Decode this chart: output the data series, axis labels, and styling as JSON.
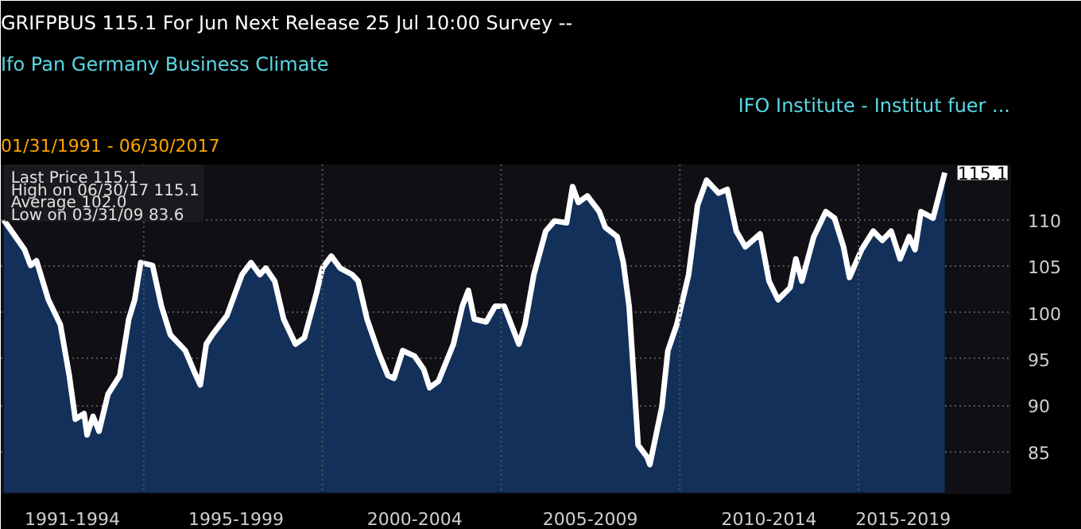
{
  "chart_data": {
    "type": "area",
    "title": "Ifo Pan Germany Business Climate",
    "subtitle": "GRIFPBUS 115.1   For Jun   Next Release 25 Jul 10:00   Survey --",
    "annotations": [
      "IFO Institute - Institut fuer ...",
      "01/31/1991 - 06/30/2017",
      "Last Price  115.1",
      "High on 06/30/17  115.1",
      "Average  102.0",
      "Low on 03/31/09  83.6",
      {
        "text": "115.1",
        "x": "2017-06",
        "y": 115.1
      }
    ],
    "x": [
      "1991-02",
      "1991-09",
      "1991-11",
      "1992-01",
      "1992-05",
      "1992-09",
      "1992-12",
      "1993-02",
      "1993-05",
      "1993-06",
      "1993-08",
      "1993-10",
      "1994-01",
      "1994-05",
      "1994-08",
      "1994-10",
      "1994-12",
      "1995-04",
      "1995-07",
      "1995-10",
      "1996-03",
      "1996-06",
      "1996-08",
      "1996-10",
      "1996-12",
      "1997-05",
      "1997-10",
      "1998-01",
      "1998-04",
      "1998-06",
      "1998-09",
      "1998-12",
      "1999-04",
      "1999-07",
      "1999-11",
      "2000-01",
      "2000-04",
      "2000-07",
      "2000-11",
      "2001-01",
      "2001-04",
      "2001-08",
      "2001-11",
      "2002-01",
      "2002-04",
      "2002-08",
      "2002-11",
      "2003-01",
      "2003-04",
      "2003-09",
      "2003-12",
      "2004-02",
      "2004-04",
      "2004-08",
      "2004-11",
      "2005-02",
      "2005-07",
      "2005-09",
      "2005-12",
      "2006-04",
      "2006-07",
      "2006-11",
      "2007-01",
      "2007-03",
      "2007-06",
      "2007-10",
      "2007-12",
      "2008-04",
      "2008-06",
      "2008-08",
      "2008-11",
      "2009-02",
      "2009-03",
      "2009-07",
      "2009-09",
      "2009-12",
      "2010-04",
      "2010-07",
      "2010-10",
      "2011-02",
      "2011-05",
      "2011-08",
      "2011-11",
      "2012-04",
      "2012-07",
      "2012-10",
      "2013-02",
      "2013-04",
      "2013-06",
      "2013-10",
      "2014-02",
      "2014-05",
      "2014-08",
      "2014-10",
      "2015-02",
      "2015-06",
      "2015-09",
      "2015-12",
      "2016-03",
      "2016-06",
      "2016-08",
      "2016-10",
      "2017-02",
      "2017-04",
      "2017-06"
    ],
    "series": [
      {
        "color": "#ffffff",
        "values": [
          110,
          106.8,
          105.1,
          105.6,
          101.4,
          98.7,
          93.2,
          88.5,
          89.1,
          86.8,
          88.8,
          87.2,
          91.2,
          93.2,
          99.3,
          101.4,
          105.4,
          105.1,
          100.7,
          97.6,
          95.9,
          93.6,
          92.2,
          96.6,
          97.6,
          99.7,
          104.1,
          105.4,
          104.1,
          104.8,
          103.4,
          99.3,
          96.6,
          97.3,
          102.1,
          104.8,
          106.1,
          104.8,
          104.1,
          103.4,
          99.3,
          95.6,
          93.2,
          92.9,
          95.9,
          95.3,
          93.9,
          91.9,
          92.6,
          96.6,
          100.7,
          102.4,
          99.3,
          99.0,
          100.7,
          100.7,
          96.6,
          98.7,
          104.1,
          108.8,
          109.9,
          109.7,
          113.6,
          111.9,
          112.6,
          110.9,
          109.2,
          108.2,
          105.5,
          100.7,
          85.7,
          84.4,
          83.6,
          89.8,
          95.9,
          98.7,
          104.1,
          111.6,
          114.3,
          112.9,
          113.3,
          108.8,
          107.1,
          108.5,
          103.4,
          101.4,
          102.7,
          105.8,
          103.4,
          108.2,
          110.9,
          110.2,
          107.1,
          103.8,
          106.8,
          108.8,
          107.8,
          108.8,
          105.8,
          108.2,
          106.8,
          110.9,
          110.2,
          112.6,
          115.1
        ]
      }
    ],
    "xlim": [
      "1991-01",
      "2019-04"
    ],
    "ylim": [
      80.5,
      116.0
    ],
    "xticks": [
      {
        "value": "1993-01",
        "label": "1991-1994"
      },
      {
        "value": "1995-01",
        "label": null
      },
      {
        "value": "1997-08",
        "label": "1995-1999"
      },
      {
        "value": "2000-01",
        "label": null
      },
      {
        "value": "2002-08",
        "label": "2000-2004"
      },
      {
        "value": "2005-01",
        "label": null
      },
      {
        "value": "2007-07",
        "label": "2005-2009"
      },
      {
        "value": "2010-01",
        "label": null
      },
      {
        "value": "2012-07",
        "label": "2010-2014"
      },
      {
        "value": "2015-01",
        "label": null
      },
      {
        "value": "2016-04",
        "label": "2015-2019"
      }
    ],
    "yticks": [
      85,
      90,
      95,
      100,
      105,
      110
    ],
    "grid": true
  }
}
